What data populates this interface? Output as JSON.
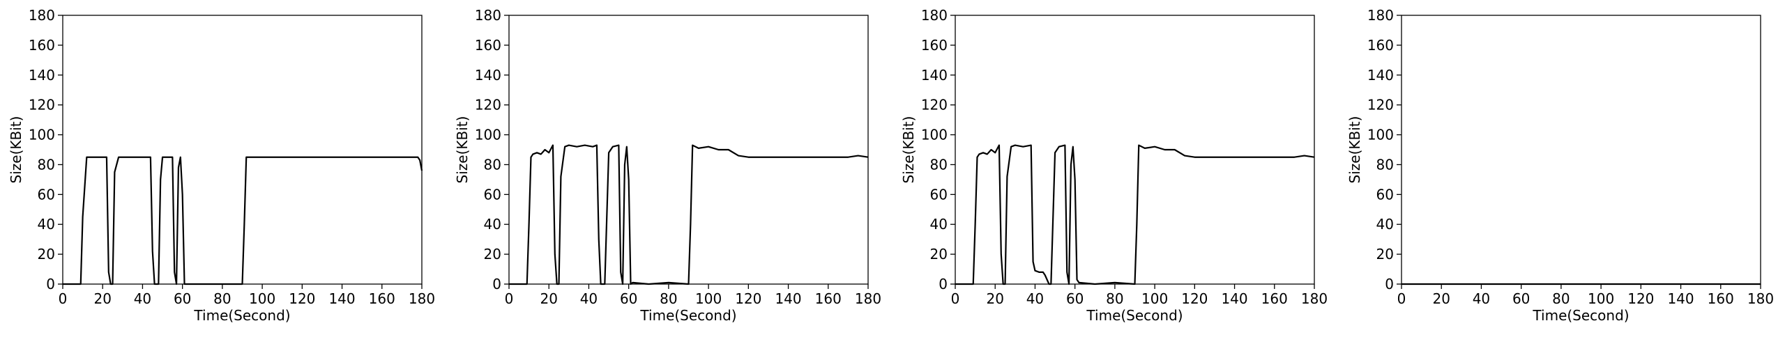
{
  "chart_data": [
    {
      "type": "line",
      "xlabel": "Time(Second)",
      "ylabel": "Size(KBit)",
      "xlim": [
        0,
        180
      ],
      "ylim": [
        0,
        180
      ],
      "xticks": [
        0,
        20,
        40,
        60,
        80,
        100,
        120,
        140,
        160,
        180
      ],
      "yticks": [
        0,
        20,
        40,
        60,
        80,
        100,
        120,
        140,
        160,
        180
      ],
      "grid": false,
      "series": [
        {
          "color": "#000000",
          "x": [
            0,
            9,
            10,
            12,
            20,
            22,
            23,
            24,
            25,
            26,
            28,
            44,
            45,
            46,
            48,
            49,
            50,
            51,
            55,
            56,
            57,
            58,
            59,
            60,
            61,
            90,
            91,
            92,
            93,
            100,
            110,
            120,
            130,
            140,
            150,
            160,
            170,
            178,
            179,
            180
          ],
          "y": [
            0,
            0,
            45,
            85,
            85,
            85,
            8,
            0,
            0,
            75,
            85,
            85,
            22,
            0,
            0,
            70,
            85,
            85,
            85,
            8,
            0,
            78,
            85,
            60,
            0,
            0,
            40,
            85,
            85,
            85,
            85,
            85,
            85,
            85,
            85,
            85,
            85,
            85,
            83,
            76
          ]
        }
      ]
    },
    {
      "type": "line",
      "xlabel": "Time(Second)",
      "ylabel": "Size(KBit)",
      "xlim": [
        0,
        180
      ],
      "ylim": [
        0,
        180
      ],
      "xticks": [
        0,
        20,
        40,
        60,
        80,
        100,
        120,
        140,
        160,
        180
      ],
      "yticks": [
        0,
        20,
        40,
        60,
        80,
        100,
        120,
        140,
        160,
        180
      ],
      "grid": false,
      "series": [
        {
          "color": "#000000",
          "x": [
            0,
            9,
            10,
            11,
            12,
            14,
            16,
            18,
            20,
            22,
            23,
            24,
            25,
            26,
            28,
            30,
            34,
            38,
            42,
            44,
            45,
            46,
            48,
            50,
            52,
            55,
            56,
            57,
            58,
            59,
            60,
            61,
            62,
            70,
            80,
            90,
            91,
            92,
            95,
            100,
            105,
            110,
            115,
            120,
            130,
            140,
            150,
            160,
            170,
            175,
            180
          ],
          "y": [
            0,
            0,
            40,
            85,
            87,
            88,
            87,
            90,
            88,
            93,
            20,
            0,
            0,
            72,
            92,
            93,
            92,
            93,
            92,
            93,
            30,
            0,
            0,
            88,
            92,
            93,
            8,
            0,
            80,
            92,
            70,
            0,
            1,
            0,
            1,
            0,
            40,
            93,
            91,
            92,
            90,
            90,
            86,
            85,
            85,
            85,
            85,
            85,
            85,
            86,
            85
          ]
        }
      ]
    },
    {
      "type": "line",
      "xlabel": "Time(Second)",
      "ylabel": "Size(KBit)",
      "xlim": [
        0,
        180
      ],
      "ylim": [
        0,
        180
      ],
      "xticks": [
        0,
        20,
        40,
        60,
        80,
        100,
        120,
        140,
        160,
        180
      ],
      "yticks": [
        0,
        20,
        40,
        60,
        80,
        100,
        120,
        140,
        160,
        180
      ],
      "grid": false,
      "series": [
        {
          "color": "#000000",
          "x": [
            0,
            9,
            10,
            11,
            12,
            14,
            16,
            18,
            20,
            22,
            23,
            24,
            25,
            26,
            28,
            30,
            34,
            38,
            39,
            40,
            42,
            44,
            45,
            47,
            48,
            50,
            52,
            55,
            56,
            57,
            58,
            59,
            60,
            61,
            62,
            70,
            80,
            90,
            91,
            92,
            95,
            100,
            105,
            110,
            115,
            120,
            130,
            140,
            150,
            160,
            170,
            175,
            180
          ],
          "y": [
            0,
            0,
            40,
            85,
            87,
            88,
            87,
            90,
            88,
            93,
            20,
            0,
            0,
            72,
            92,
            93,
            92,
            93,
            15,
            9,
            8,
            8,
            6,
            0,
            0,
            88,
            92,
            93,
            8,
            0,
            80,
            92,
            70,
            3,
            1,
            0,
            1,
            0,
            40,
            93,
            91,
            92,
            90,
            90,
            86,
            85,
            85,
            85,
            85,
            85,
            85,
            86,
            85
          ]
        }
      ]
    },
    {
      "type": "line",
      "xlabel": "Time(Second)",
      "ylabel": "Size(KBit)",
      "xlim": [
        0,
        180
      ],
      "ylim": [
        0,
        180
      ],
      "xticks": [
        0,
        20,
        40,
        60,
        80,
        100,
        120,
        140,
        160,
        180
      ],
      "yticks": [
        0,
        20,
        40,
        60,
        80,
        100,
        120,
        140,
        160,
        180
      ],
      "grid": false,
      "series": [
        {
          "color": "#000000",
          "x": [
            0,
            180
          ],
          "y": [
            0,
            0
          ]
        }
      ]
    }
  ]
}
